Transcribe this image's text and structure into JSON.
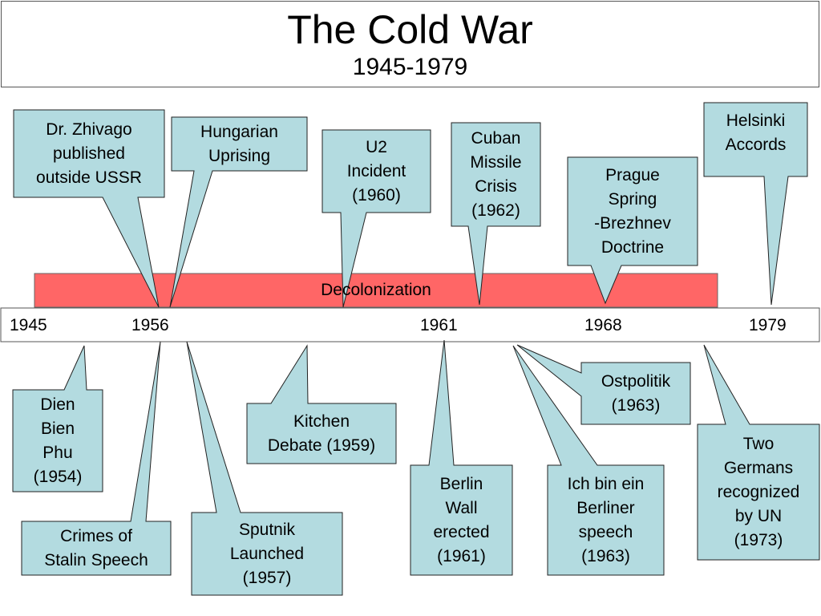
{
  "title": "The Cold War",
  "subtitle": "1945-1979",
  "band_label": "Decolonization",
  "years": [
    "1945",
    "1956",
    "1961",
    "1968",
    "1979"
  ],
  "events": [
    "Dr. Zhivago\npublished\noutside USSR",
    "Hungarian\nUprising",
    "U2\nIncident\n(1960)",
    "Cuban\nMissile\nCrisis\n(1962)",
    "Prague\nSpring\n-Brezhnev\nDoctrine",
    "Helsinki\nAccords",
    "Dien\nBien\nPhu\n(1954)",
    "Crimes of\nStalin Speech",
    "Sputnik\nLaunched\n(1957)",
    "Kitchen\nDebate (1959)",
    "Berlin\nWall\nerected\n(1961)",
    "Ich bin ein\nBerliner\nspeech\n(1963)",
    "Ostpolitik\n(1963)",
    "Two\nGermans\nrecognized\nby UN\n(1973)"
  ],
  "colors": {
    "callout_fill": "#b3dbe0",
    "band_fill": "#ff6666",
    "border": "#222222"
  }
}
